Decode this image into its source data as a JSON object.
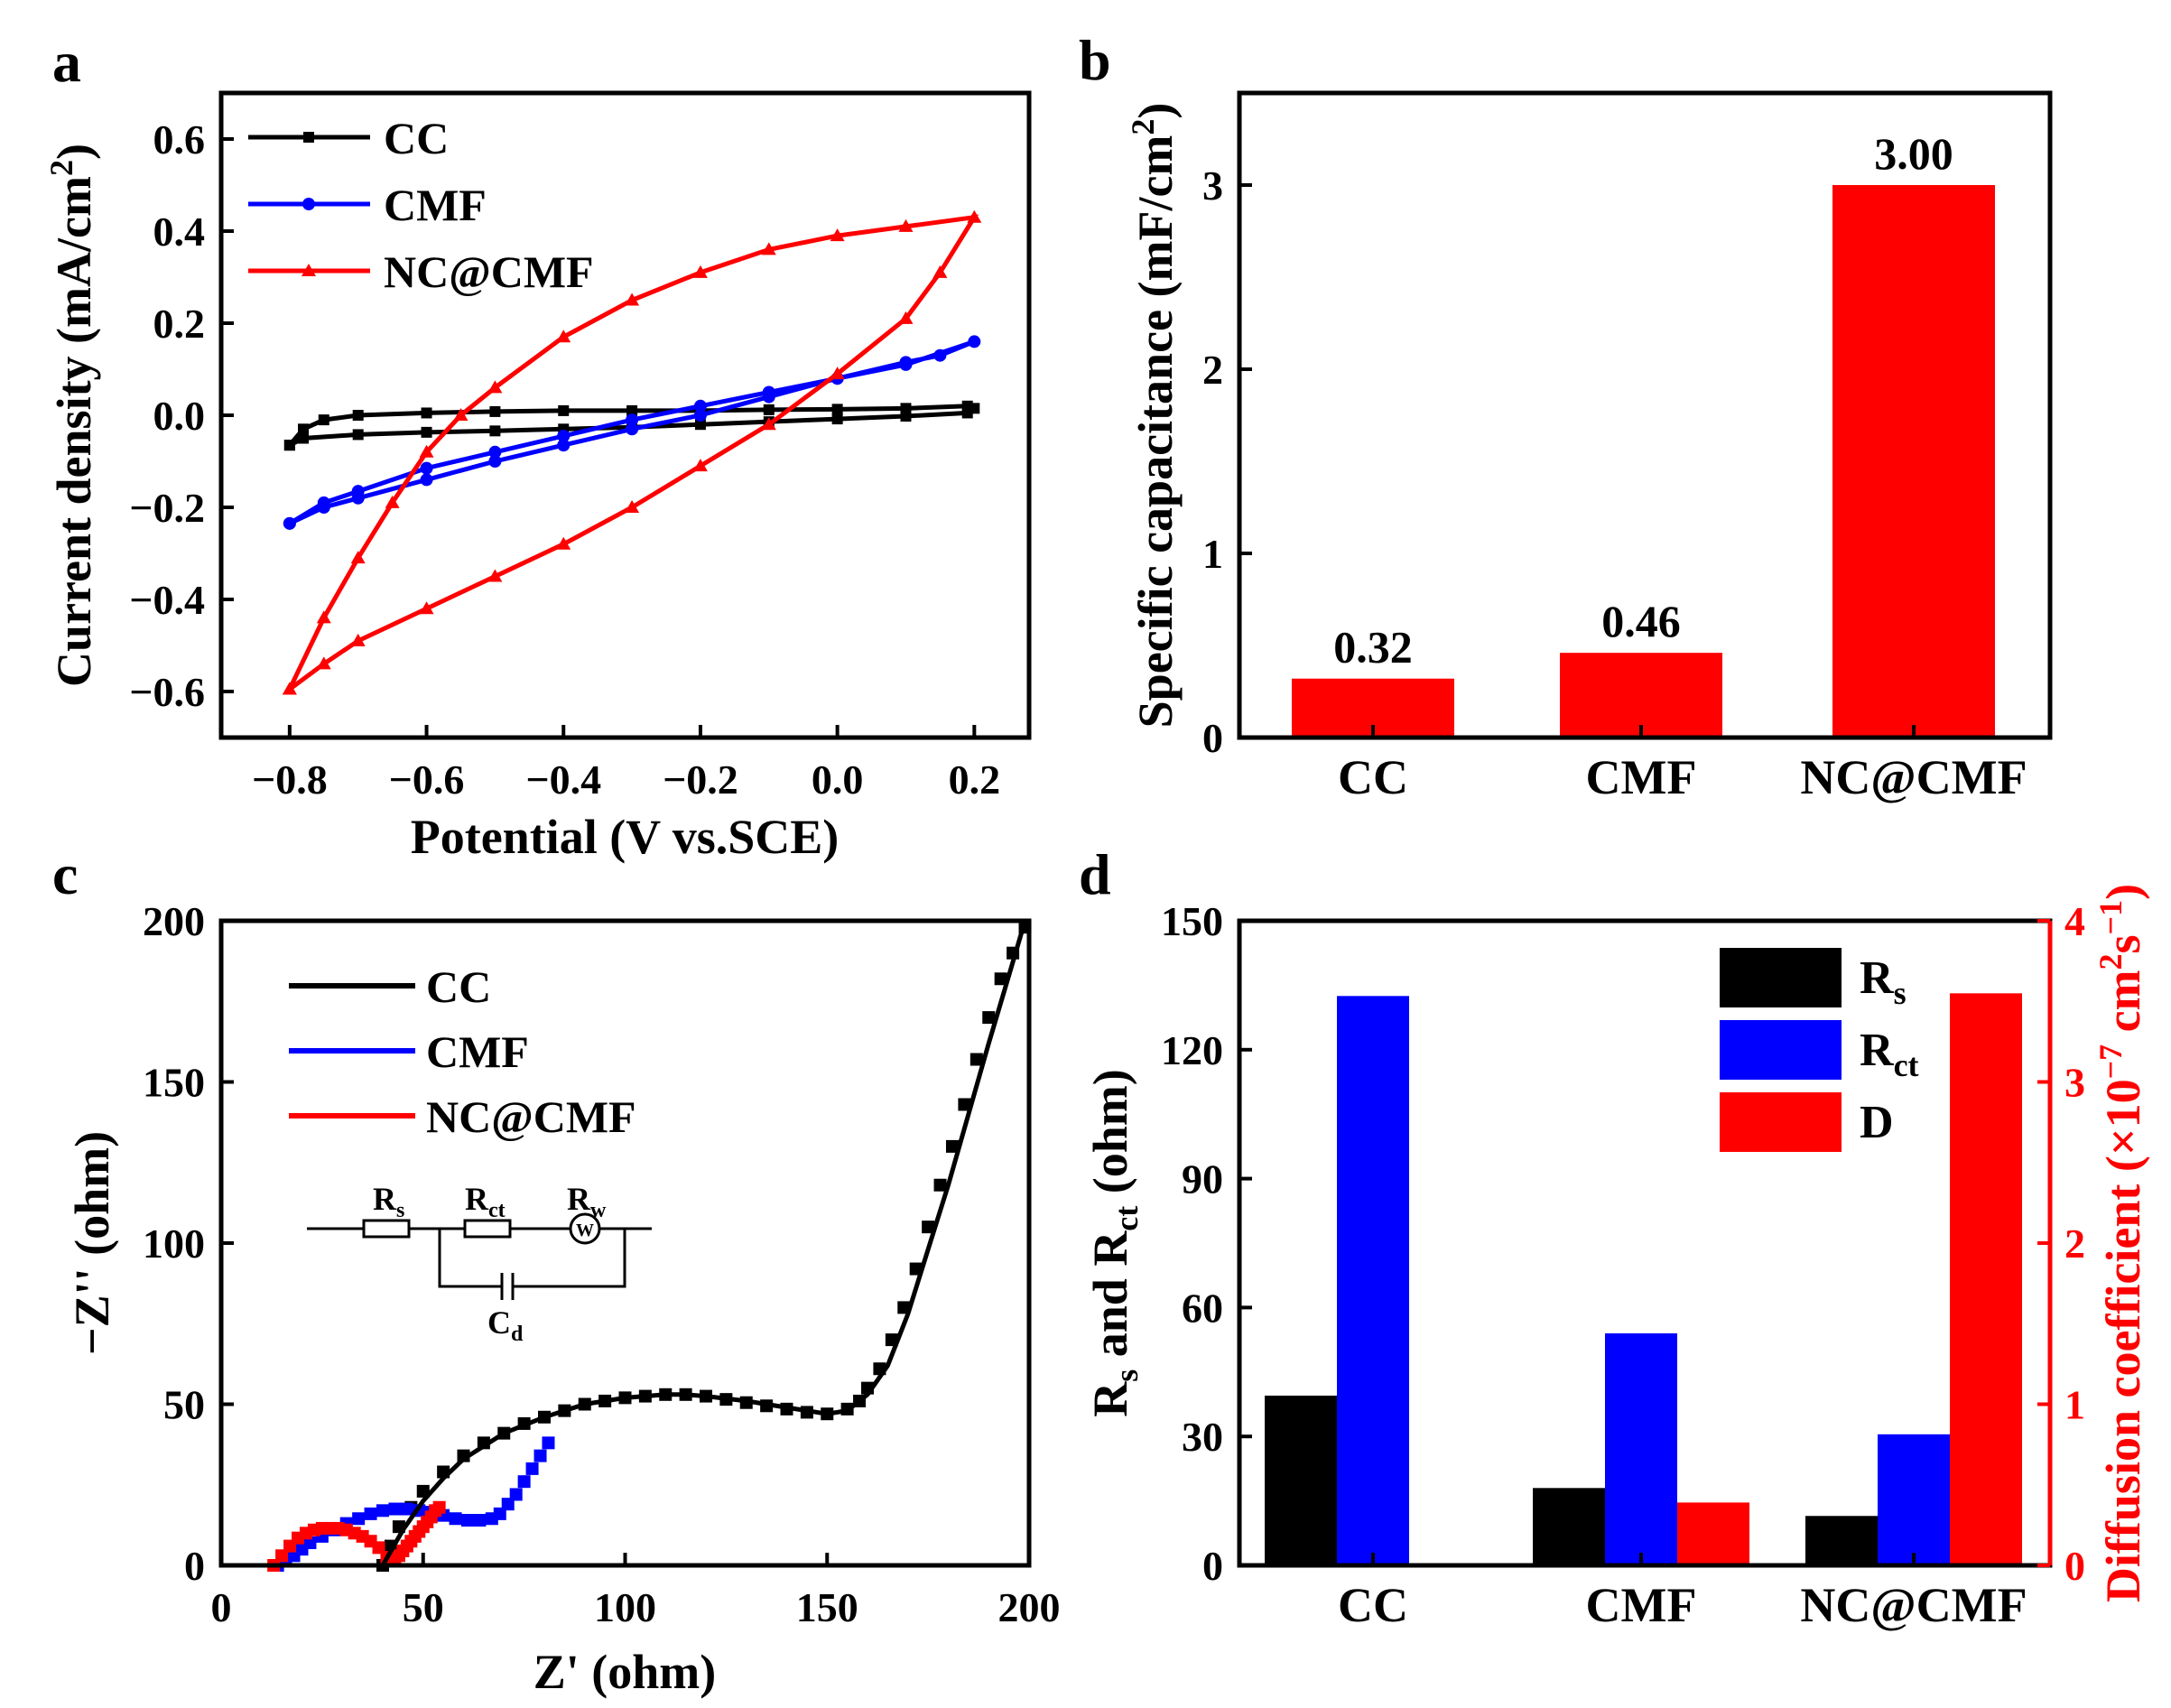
{
  "colors": {
    "cc": "#000000",
    "cmf": "#0000ff",
    "nc": "#ff0000",
    "d_axis": "#ff0000"
  },
  "chart_data": [
    {
      "panel": "a",
      "type": "line",
      "title": "",
      "xlabel": "Potential (V vs.SCE)",
      "ylabel": "Current density (mA/cm²)",
      "xlim": [
        -0.9,
        0.28
      ],
      "ylim": [
        -0.7,
        0.7
      ],
      "xticks": [
        {
          "v": -0.8,
          "label": "−0.8"
        },
        {
          "v": -0.6,
          "label": "−0.6"
        },
        {
          "v": -0.4,
          "label": "−0.4"
        },
        {
          "v": -0.2,
          "label": "−0.2"
        },
        {
          "v": 0.0,
          "label": "0.0"
        },
        {
          "v": 0.2,
          "label": "0.2"
        }
      ],
      "yticks": [
        {
          "v": -0.6,
          "label": "−0.6"
        },
        {
          "v": -0.4,
          "label": "−0.4"
        },
        {
          "v": -0.2,
          "label": "−0.2"
        },
        {
          "v": 0.0,
          "label": "0.0"
        },
        {
          "v": 0.2,
          "label": "0.2"
        },
        {
          "v": 0.4,
          "label": "0.4"
        },
        {
          "v": 0.6,
          "label": "0.6"
        }
      ],
      "legend": [
        {
          "name": "CC",
          "key": "cc",
          "marker": "square"
        },
        {
          "name": "CMF",
          "key": "cmf",
          "marker": "circle"
        },
        {
          "name": "NC@CMF",
          "key": "nc",
          "marker": "triangle"
        }
      ],
      "series": [
        {
          "name": "CC",
          "key": "cc",
          "marker": "square",
          "x": [
            -0.8,
            -0.78,
            -0.75,
            -0.7,
            -0.6,
            -0.5,
            -0.4,
            -0.3,
            -0.2,
            -0.1,
            0.0,
            0.1,
            0.19,
            0.2,
            0.19,
            0.1,
            0.0,
            -0.1,
            -0.2,
            -0.3,
            -0.4,
            -0.5,
            -0.6,
            -0.7,
            -0.78,
            -0.8
          ],
          "y": [
            -0.065,
            -0.03,
            -0.01,
            0.0,
            0.005,
            0.008,
            0.01,
            0.01,
            0.01,
            0.012,
            0.013,
            0.015,
            0.02,
            0.015,
            0.005,
            -0.002,
            -0.008,
            -0.014,
            -0.02,
            -0.026,
            -0.03,
            -0.034,
            -0.037,
            -0.042,
            -0.05,
            -0.065
          ]
        },
        {
          "name": "CMF",
          "key": "cmf",
          "marker": "circle",
          "x": [
            -0.8,
            -0.75,
            -0.7,
            -0.6,
            -0.5,
            -0.4,
            -0.3,
            -0.2,
            -0.1,
            0.0,
            0.1,
            0.2,
            0.15,
            0.1,
            0.0,
            -0.1,
            -0.2,
            -0.3,
            -0.4,
            -0.5,
            -0.6,
            -0.7,
            -0.75,
            -0.8
          ],
          "y": [
            -0.235,
            -0.19,
            -0.165,
            -0.115,
            -0.08,
            -0.045,
            -0.01,
            0.02,
            0.05,
            0.08,
            0.11,
            0.16,
            0.13,
            0.115,
            0.08,
            0.04,
            0.0,
            -0.03,
            -0.065,
            -0.1,
            -0.14,
            -0.18,
            -0.2,
            -0.235
          ]
        },
        {
          "name": "NC@CMF",
          "key": "nc",
          "marker": "triangle",
          "x": [
            -0.8,
            -0.75,
            -0.7,
            -0.65,
            -0.6,
            -0.55,
            -0.5,
            -0.4,
            -0.3,
            -0.2,
            -0.1,
            0.0,
            0.1,
            0.2,
            0.15,
            0.1,
            0.0,
            -0.1,
            -0.2,
            -0.3,
            -0.4,
            -0.5,
            -0.6,
            -0.7,
            -0.75,
            -0.8
          ],
          "y": [
            -0.595,
            -0.44,
            -0.31,
            -0.19,
            -0.08,
            0.0,
            0.06,
            0.17,
            0.25,
            0.31,
            0.36,
            0.39,
            0.41,
            0.43,
            0.31,
            0.21,
            0.09,
            -0.02,
            -0.11,
            -0.2,
            -0.28,
            -0.35,
            -0.42,
            -0.49,
            -0.54,
            -0.595
          ]
        }
      ]
    },
    {
      "panel": "b",
      "type": "bar",
      "title": "",
      "xlabel": "",
      "ylabel": "Specific capacitance (mF/cm²)",
      "ylim": [
        0,
        3.5
      ],
      "yticks": [
        {
          "v": 0,
          "label": "0"
        },
        {
          "v": 1,
          "label": "1"
        },
        {
          "v": 2,
          "label": "2"
        },
        {
          "v": 3,
          "label": "3"
        }
      ],
      "categories": [
        "CC",
        "CMF",
        "NC@CMF"
      ],
      "values": [
        0.32,
        0.46,
        3.0
      ],
      "value_labels": [
        "0.32",
        "0.46",
        "3.00"
      ]
    },
    {
      "panel": "c",
      "type": "scatter",
      "title": "",
      "xlabel": "Z' (ohm)",
      "ylabel": "−Z'' (ohm)",
      "xlim": [
        0,
        200
      ],
      "ylim": [
        0,
        200
      ],
      "xticks": [
        {
          "v": 0,
          "label": "0"
        },
        {
          "v": 50,
          "label": "50"
        },
        {
          "v": 100,
          "label": "100"
        },
        {
          "v": 150,
          "label": "150"
        },
        {
          "v": 200,
          "label": "200"
        }
      ],
      "yticks": [
        {
          "v": 0,
          "label": "0"
        },
        {
          "v": 50,
          "label": "50"
        },
        {
          "v": 100,
          "label": "100"
        },
        {
          "v": 150,
          "label": "150"
        },
        {
          "v": 200,
          "label": "200"
        }
      ],
      "legend": [
        {
          "name": "CC",
          "key": "cc"
        },
        {
          "name": "CMF",
          "key": "cmf"
        },
        {
          "name": "NC@CMF",
          "key": "nc"
        }
      ],
      "circuit": {
        "rs": "R",
        "rs_sub": "s",
        "rct": "R",
        "rct_sub": "ct",
        "rw": "R",
        "rw_sub": "w",
        "cd": "C",
        "cd_sub": "d",
        "w_symbol": "W"
      },
      "series": [
        {
          "name": "CC",
          "key": "cc",
          "x": [
            40,
            42,
            44,
            47,
            50,
            55,
            60,
            65,
            70,
            75,
            80,
            85,
            90,
            95,
            100,
            105,
            110,
            115,
            120,
            125,
            130,
            135,
            140,
            145,
            150,
            155,
            158,
            160,
            163,
            166,
            169,
            172,
            175,
            178,
            181,
            184,
            187,
            190,
            193,
            196,
            199
          ],
          "y": [
            0,
            6,
            12,
            18,
            23,
            29,
            34,
            38,
            41,
            44,
            46,
            48,
            50,
            51,
            52,
            52.5,
            53,
            53,
            52.5,
            51.5,
            50.5,
            49.5,
            48.5,
            47.5,
            47,
            48.5,
            51,
            55,
            61,
            70,
            80,
            92,
            105,
            118,
            130,
            143,
            157,
            170,
            182,
            190,
            198
          ]
        },
        {
          "name": "CMF",
          "key": "cmf",
          "x": [
            14,
            16,
            18,
            20,
            22,
            25,
            28,
            31,
            34,
            37,
            40,
            43,
            46,
            49,
            52,
            55,
            58,
            61,
            64,
            67,
            69,
            71,
            73,
            75,
            77,
            79,
            81
          ],
          "y": [
            0,
            1.5,
            3,
            5,
            7,
            9,
            11,
            13,
            14.5,
            16,
            17,
            17.5,
            17.5,
            17,
            16.5,
            15.5,
            14.5,
            14,
            14,
            14.5,
            16,
            19,
            22,
            26,
            30,
            34,
            38
          ]
        },
        {
          "name": "NC@CMF",
          "key": "nc",
          "x": [
            13,
            15,
            17,
            19,
            21,
            23,
            25,
            27,
            29,
            31,
            33,
            35,
            37,
            39,
            41,
            42,
            43,
            44,
            45,
            46,
            47,
            48,
            49,
            50,
            51,
            52,
            53,
            54
          ],
          "y": [
            0,
            3,
            6,
            8.5,
            10,
            11,
            11.5,
            11.5,
            11.5,
            11,
            10,
            9,
            7.5,
            5.5,
            2.5,
            2,
            2.5,
            3,
            4.5,
            6,
            7.5,
            9,
            10.5,
            12,
            13.5,
            15,
            17,
            18
          ]
        }
      ],
      "fit_cc": {
        "x": [
          40,
          45,
          50,
          55,
          60,
          70,
          80,
          90,
          100,
          110,
          115,
          120,
          130,
          140,
          150,
          155,
          160,
          165,
          170,
          175,
          180,
          185,
          190,
          195,
          199
        ],
        "y": [
          0,
          11,
          20,
          27,
          33,
          41,
          46,
          50,
          52,
          53,
          53,
          52.5,
          51,
          49,
          47,
          48,
          53,
          62,
          78,
          98,
          118,
          140,
          162,
          183,
          200
        ]
      }
    },
    {
      "panel": "d",
      "type": "bar",
      "title": "",
      "xlabel": "",
      "ylabel": "R_s and R_ct (ohm)",
      "ylabel2": "Diffusion coefficient (×10^−7 cm²s^−1)",
      "ylim": [
        0,
        150
      ],
      "ylim2": [
        0,
        4
      ],
      "yticks": [
        {
          "v": 0,
          "label": "0"
        },
        {
          "v": 30,
          "label": "30"
        },
        {
          "v": 60,
          "label": "60"
        },
        {
          "v": 90,
          "label": "90"
        },
        {
          "v": 120,
          "label": "120"
        },
        {
          "v": 150,
          "label": "150"
        }
      ],
      "yticks2": [
        {
          "v": 0,
          "label": "0"
        },
        {
          "v": 1,
          "label": "1"
        },
        {
          "v": 2,
          "label": "2"
        },
        {
          "v": 3,
          "label": "3"
        },
        {
          "v": 4,
          "label": "4"
        }
      ],
      "categories": [
        "CC",
        "CMF",
        "NC@CMF"
      ],
      "series": [
        {
          "name": "Rs",
          "label": "R",
          "sub": "s",
          "key": "cc",
          "axis": "left",
          "values": [
            39.5,
            18,
            11.5
          ]
        },
        {
          "name": "Rct",
          "label": "R",
          "sub": "ct",
          "key": "cmf",
          "axis": "left",
          "values": [
            132.5,
            54,
            30.5
          ]
        },
        {
          "name": "D",
          "label": "D",
          "sub": "",
          "key": "nc",
          "axis": "right",
          "values": [
            0,
            0.39,
            3.55
          ]
        }
      ]
    }
  ],
  "labels": {
    "panel_a": "a",
    "panel_b": "b",
    "panel_c": "c",
    "panel_d": "d",
    "a_ylabel_main": "Current density (mA/cm",
    "a_ylabel_sup": "2",
    "a_ylabel_end": ")",
    "b_ylabel_main": "Specific capacitance (mF/cm",
    "b_ylabel_sup": "2",
    "b_ylabel_end": ")",
    "d_ylabel_r": "R",
    "d_ylabel_s": "s",
    "d_ylabel_and": " and R",
    "d_ylabel_ct": "ct",
    "d_ylabel_unit": " (ohm)",
    "d_ylabel2_main": "Diffusion coefficient (×10",
    "d_ylabel2_sup1": "−7",
    "d_ylabel2_mid": " cm",
    "d_ylabel2_sup2": "2",
    "d_ylabel2_s": "s",
    "d_ylabel2_sup3": "−1",
    "d_ylabel2_end": ")"
  }
}
